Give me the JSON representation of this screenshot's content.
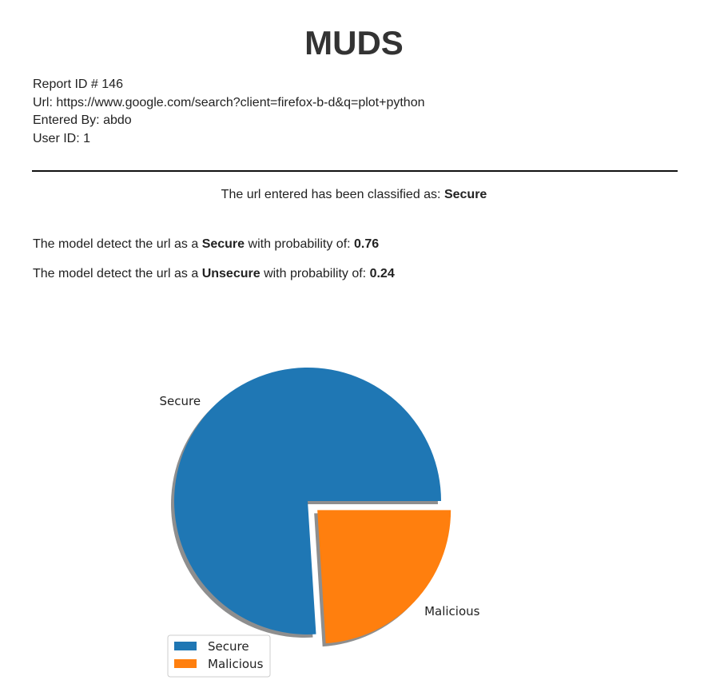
{
  "header": {
    "title": "MUDS"
  },
  "report": {
    "id_label": "Report ID #",
    "id_value": "146",
    "url_label": "Url:",
    "url_value": "https://www.google.com/search?client=firefox-b-d&q=plot+python",
    "entered_by_label": "Entered By:",
    "entered_by_value": "abdo",
    "user_id_label": "User ID:",
    "user_id_value": "1"
  },
  "classification": {
    "prefix": "The url entered has been classified as:",
    "result": "Secure"
  },
  "probabilities": [
    {
      "prefix": "The model detect the url as a",
      "label": "Secure",
      "middle": "with probability of:",
      "value": "0.76"
    },
    {
      "prefix": "The model detect the url as a",
      "label": "Unsecure",
      "middle": "with probability of:",
      "value": "0.24"
    }
  ],
  "chart_data": {
    "type": "pie",
    "labels": [
      "Secure",
      "Malicious"
    ],
    "values": [
      0.76,
      0.24
    ],
    "explode": [
      0,
      0.1
    ],
    "shadow": true,
    "colors": [
      "#1f77b4",
      "#ff7f0e"
    ],
    "legend": {
      "entries": [
        "Secure",
        "Malicious"
      ],
      "placement": "lower-left"
    }
  }
}
